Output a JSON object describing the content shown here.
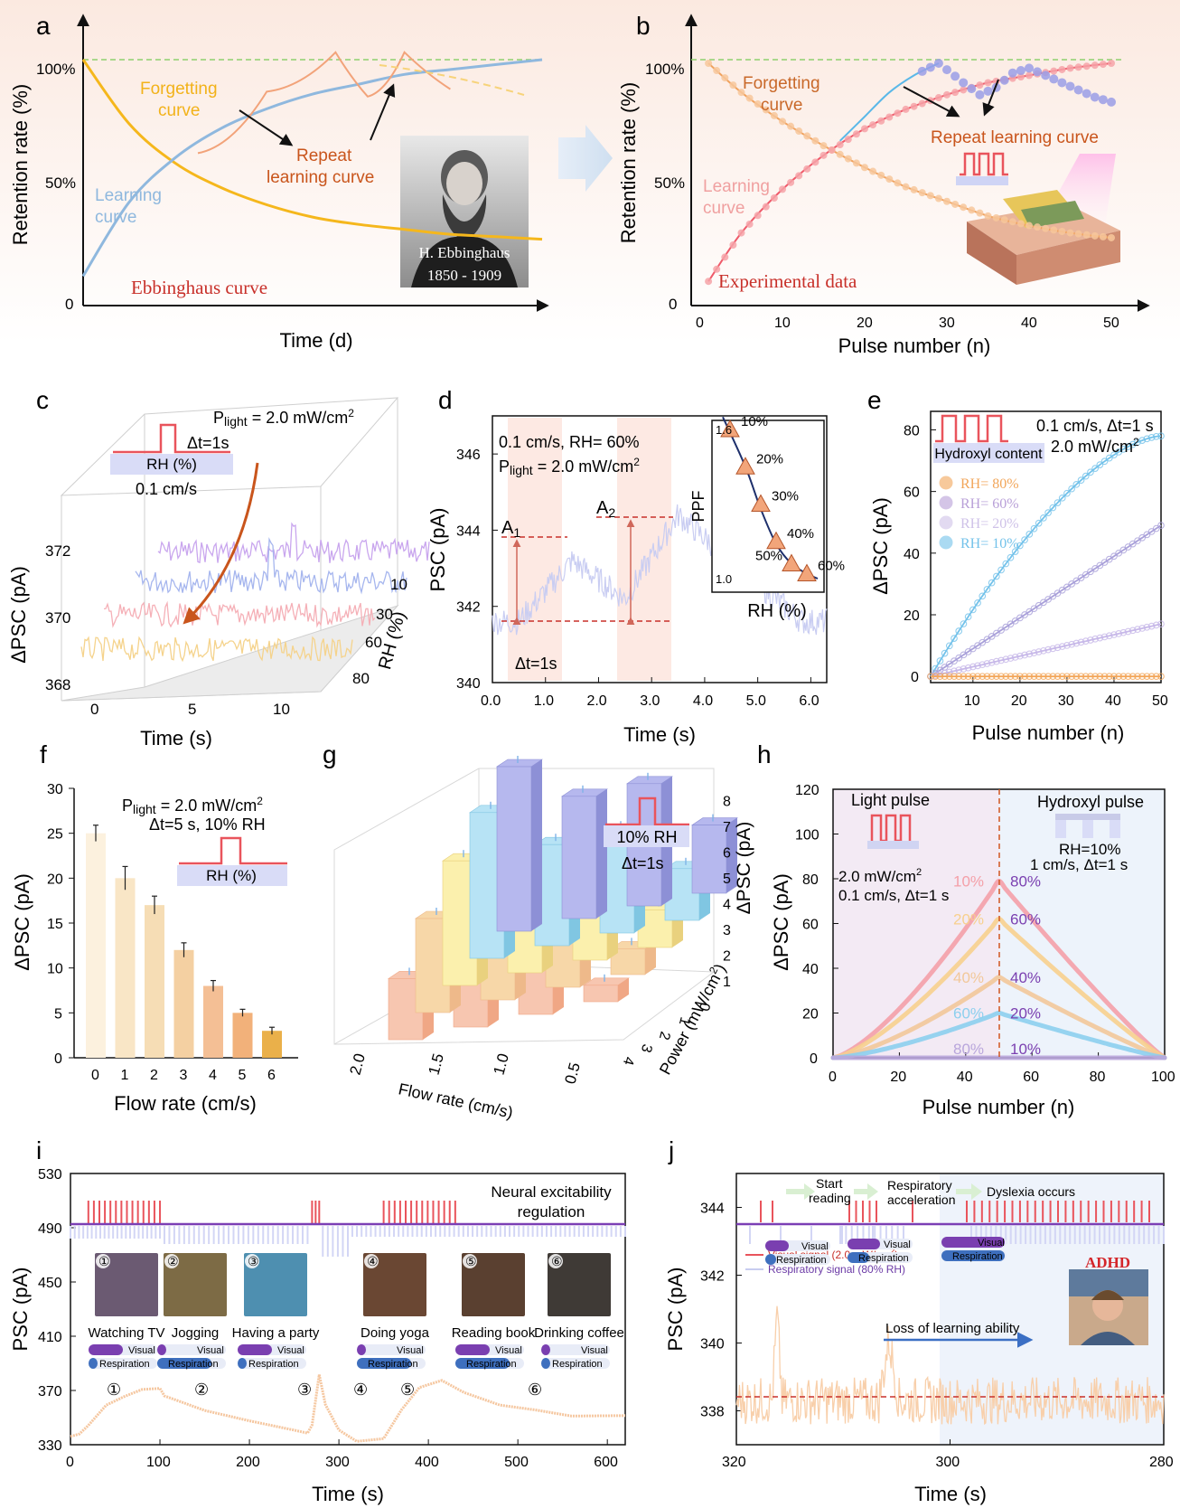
{
  "panels": {
    "a": {
      "letter": "a",
      "ylabel": "Retention rate (%)",
      "xlabel": "Time (d)",
      "yticks": [
        "100%",
        "50%",
        "0"
      ],
      "labels": {
        "forgetting": "Forgetting curve",
        "learning": "Learning curve",
        "repeat": "Repeat learning curve",
        "title": "Ebbinghaus curve"
      },
      "portrait_caption": [
        "H. Ebbinghaus",
        "1850 - 1909"
      ]
    },
    "b": {
      "letter": "b",
      "ylabel": "Retention rate (%)",
      "xlabel": "Pulse number (n)",
      "yticks": [
        "100%",
        "50%",
        "0"
      ],
      "labels": {
        "forgetting": "Forgetting curve",
        "learning": "Learning curve",
        "repeat": "Repeat learning curve",
        "title": "Experimental data"
      }
    },
    "c": {
      "letter": "c",
      "ylabel": "ΔPSC (pA)",
      "xlabel": "Time (s)",
      "rhlabel": "RH (%)",
      "ann_power_label": "P",
      "ann_power_sub": "light",
      "ann_power_val": " = 2.0 mW/cm",
      "ann_dt": "Δt=1s",
      "ann_rh": "RH (%)",
      "ann_flow": "0.1 cm/s"
    },
    "d": {
      "letter": "d",
      "ylabel": "PSC (pA)",
      "xlabel": "Time (s)",
      "ann1": "0.1 cm/s, RH= 60%",
      "ann_power_label": "P",
      "ann_power_sub": "light",
      "ann_power_val": " = 2.0 mW/cm",
      "a1": "A",
      "a1_sub": "1",
      "a2": "A",
      "a2_sub": "2",
      "dt": "Δt=1s",
      "inset_ylabel": "PPF",
      "inset_xlabel": "RH (%)"
    },
    "e": {
      "letter": "e",
      "ylabel": "ΔPSC (pA)",
      "xlabel": "Pulse number (n)",
      "ann1": "0.1 cm/s, Δt=1 s",
      "ann2": "2.0 mW/cm",
      "box": "Hydroxyl content"
    },
    "f": {
      "letter": "f",
      "ylabel": "ΔPSC (pA)",
      "xlabel": "Flow rate (cm/s)",
      "ann_power_label": "P",
      "ann_power_sub": "light",
      "ann_power_val": " = 2.0 mW/cm",
      "ann2": "Δt=5 s, 10% RH",
      "box": "RH (%)"
    },
    "g": {
      "letter": "g",
      "zlabel": "ΔPSC (pA)",
      "xlabel": "Flow rate (cm/s)",
      "ylabel": "Power (mW/cm",
      "box1": "10% RH",
      "box2": "Δt=1s"
    },
    "h": {
      "letter": "h",
      "ylabel": "ΔPSC (pA)",
      "xlabel": "Pulse number (n)",
      "light_title": "Light pulse",
      "hyd_title": "Hydroxyl pulse",
      "ann_left1": "2.0 mW/cm",
      "ann_left2": "0.1 cm/s, Δt=1 s",
      "ann_right1": "RH=10%",
      "ann_right2": "1 cm/s, Δt=1 s"
    },
    "i": {
      "letter": "i",
      "ylabel": "PSC (pA)",
      "xlabel": "Time (s)",
      "title1": "Neural excitability",
      "title2": "regulation",
      "bar_visual": "Visual",
      "bar_resp": "Respiration"
    },
    "j": {
      "letter": "j",
      "ylabel": "PSC (pA)",
      "xlabel": "Time (s)",
      "step1": "Start",
      "step1b": "reading",
      "step2": "Respiratory",
      "step2b": "acceleration",
      "step3": "Dyslexia occurs",
      "leg_visual": "Visual signal (2.0 mW/cm",
      "leg_resp": "Respiratory signal (80% RH)",
      "bar_visual": "Visual",
      "bar_resp": "Respiration",
      "loss": "Loss of learning ability",
      "adhd": "ADHD"
    }
  },
  "chart_data": [
    {
      "panel": "a",
      "type": "line",
      "title": "Ebbinghaus curve",
      "xlabel": "Time (d)",
      "ylabel": "Retention rate (%)",
      "ylim": [
        0,
        100
      ],
      "series": [
        {
          "name": "Forgetting curve",
          "x": [
            0,
            1,
            2,
            3,
            4,
            5,
            6,
            7,
            8,
            9,
            10
          ],
          "values": [
            100,
            74,
            58,
            48,
            41,
            36,
            33,
            31,
            29,
            28,
            27
          ]
        },
        {
          "name": "Learning curve",
          "x": [
            0,
            1,
            2,
            3,
            4,
            5,
            6,
            7,
            8,
            9,
            10
          ],
          "values": [
            12,
            42,
            60,
            72,
            80,
            86,
            90,
            94,
            96,
            98,
            100
          ]
        },
        {
          "name": "Repeat learning curve",
          "x": [
            2.5,
            4,
            5.5,
            6.2,
            7,
            8
          ],
          "values": [
            62,
            87,
            103,
            85,
            103,
            88
          ]
        }
      ]
    },
    {
      "panel": "b",
      "type": "scatter",
      "title": "Experimental data",
      "xlabel": "Pulse number (n)",
      "ylabel": "Retention rate (%)",
      "x_ticks": [
        0,
        10,
        20,
        30,
        40,
        50
      ],
      "xlim": [
        0,
        50
      ],
      "ylim": [
        0,
        100
      ],
      "series": [
        {
          "name": "Forgetting curve",
          "x": [
            1,
            5,
            10,
            15,
            20,
            25,
            30,
            35,
            40,
            45,
            50
          ],
          "values": [
            100,
            88,
            76,
            66,
            57,
            49,
            43,
            37,
            33,
            30,
            28
          ]
        },
        {
          "name": "Learning curve",
          "x": [
            1,
            5,
            10,
            15,
            20,
            25,
            30,
            35,
            40,
            45,
            50
          ],
          "values": [
            10,
            30,
            48,
            62,
            73,
            81,
            87,
            92,
            95,
            98,
            100
          ]
        },
        {
          "name": "Repeat learning curve",
          "x": [
            17,
            20,
            23,
            26,
            29,
            32,
            34,
            36,
            38,
            40,
            44,
            48,
            50
          ],
          "values": [
            68,
            78,
            88,
            95,
            100,
            92,
            87,
            90,
            96,
            98,
            92,
            86,
            84
          ]
        }
      ]
    },
    {
      "panel": "c",
      "type": "line",
      "xlabel": "Time (s)",
      "ylabel": "ΔPSC (pA)",
      "x_ticks": [
        0,
        5,
        10
      ],
      "y_ticks": [
        368,
        370,
        372
      ],
      "rh_ticks": [
        10,
        30,
        60,
        80
      ],
      "series": [
        {
          "name": "10",
          "baseline": 372.0
        },
        {
          "name": "30",
          "baseline": 371.4
        },
        {
          "name": "60",
          "baseline": 370.5
        },
        {
          "name": "80",
          "baseline": 369.6
        }
      ]
    },
    {
      "panel": "d",
      "type": "line",
      "xlabel": "Time (s)",
      "ylabel": "PSC (pA)",
      "x_ticks": [
        0.0,
        1.0,
        2.0,
        3.0,
        4.0,
        5.0,
        6.0
      ],
      "y_ticks": [
        340,
        342,
        344,
        346
      ],
      "xlim": [
        0,
        6.3
      ],
      "ylim": [
        340,
        347
      ],
      "a1_level": 343.8,
      "a2_level": 344.3,
      "base_level": 341.6,
      "inset": {
        "xlabel": "RH (%)",
        "ylabel": "PPF",
        "y_ticks": [
          1.0,
          1.6
        ],
        "points": [
          {
            "label": "10%",
            "ppf": 1.6
          },
          {
            "label": "20%",
            "ppf": 1.45
          },
          {
            "label": "30%",
            "ppf": 1.3
          },
          {
            "label": "40%",
            "ppf": 1.15
          },
          {
            "label": "50%",
            "ppf": 1.06
          },
          {
            "label": "60%",
            "ppf": 1.02
          }
        ]
      }
    },
    {
      "panel": "e",
      "type": "line",
      "xlabel": "Pulse number (n)",
      "ylabel": "ΔPSC (pA)",
      "x_ticks": [
        10,
        20,
        30,
        40,
        50
      ],
      "y_ticks": [
        0,
        20,
        40,
        60,
        80
      ],
      "xlim": [
        1,
        50
      ],
      "ylim": [
        -2,
        86
      ],
      "series": [
        {
          "name": "RH= 80%",
          "color": "#f2a65a",
          "final": 0
        },
        {
          "name": "RH= 60%",
          "color": "#b9a0d8",
          "final": 0
        },
        {
          "name": "RH= 20%",
          "color": "#cfc2e8",
          "final": 17
        },
        {
          "name": "RH= 10%",
          "color": "#73c2ea",
          "final": 78
        }
      ],
      "extra_series_final": 49
    },
    {
      "panel": "f",
      "type": "bar",
      "xlabel": "Flow rate (cm/s)",
      "ylabel": "ΔPSC (pA)",
      "categories": [
        "0",
        "1",
        "2",
        "3",
        "4",
        "5",
        "6"
      ],
      "values": [
        25,
        20,
        17,
        12,
        8,
        5,
        3
      ],
      "errors": [
        0.9,
        1.3,
        1.0,
        0.8,
        0.6,
        0.4,
        0.4
      ],
      "y_ticks": [
        0,
        5,
        10,
        15,
        20,
        25,
        30
      ],
      "ylim": [
        0,
        30
      ]
    },
    {
      "panel": "g",
      "type": "bar",
      "xlabel": "Flow rate (cm/s)",
      "ylabel": "Power (mW/cm²)",
      "zlabel": "ΔPSC (pA)",
      "flow_ticks": [
        "2.0",
        "1.5",
        "1.0",
        "0.5"
      ],
      "power_ticks": [
        "0",
        "1",
        "2",
        "3",
        "4"
      ],
      "z_ticks": [
        1,
        2,
        3,
        4,
        5,
        6,
        7,
        8
      ],
      "rows": [
        {
          "power": 4,
          "values": [
            2.6,
            2.2,
            2.2,
            0.7
          ]
        },
        {
          "power": 3,
          "values": [
            4.0,
            3.0,
            3.0,
            1.1
          ]
        },
        {
          "power": 2,
          "values": [
            5.3,
            3.6,
            3.6,
            1.6
          ]
        },
        {
          "power": 1,
          "values": [
            6.2,
            4.3,
            4.3,
            2.2
          ]
        },
        {
          "power": 0,
          "values": [
            7.0,
            5.2,
            5.2,
            2.9
          ]
        }
      ]
    },
    {
      "panel": "h",
      "type": "line",
      "xlabel": "Pulse number (n)",
      "ylabel": "ΔPSC (pA)",
      "x_ticks": [
        0,
        20,
        40,
        60,
        80,
        100
      ],
      "y_ticks": [
        0,
        20,
        40,
        60,
        80,
        100,
        120
      ],
      "xlim": [
        0,
        100
      ],
      "ylim": [
        0,
        120
      ],
      "series": [
        {
          "left": "10%",
          "right": "80%",
          "color": "#f4a0a8",
          "peak": 79
        },
        {
          "left": "20%",
          "right": "60%",
          "color": "#f7d08e",
          "peak": 62
        },
        {
          "left": "40%",
          "right": "40%",
          "color": "#f2c89a",
          "peak": 36
        },
        {
          "left": "60%",
          "right": "20%",
          "color": "#8ccfee",
          "peak": 20
        },
        {
          "left": "80%",
          "right": "10%",
          "color": "#b9a6dc",
          "peak": 0
        }
      ]
    },
    {
      "panel": "i",
      "type": "line",
      "xlabel": "Time (s)",
      "ylabel": "PSC (pA)",
      "x_ticks": [
        0,
        100,
        200,
        300,
        400,
        500,
        600
      ],
      "y_ticks": [
        330,
        370,
        410,
        450,
        490,
        530
      ],
      "xlim": [
        0,
        620
      ],
      "ylim": [
        330,
        530
      ],
      "activities": [
        "Watching TV",
        "Jogging",
        "Having a party",
        "Doing yoga",
        "Reading book",
        "Drinking coffee"
      ],
      "markers": [
        "①",
        "②",
        "③",
        "④",
        "⑤",
        "⑥"
      ],
      "points": [
        [
          0,
          336
        ],
        [
          10,
          337
        ],
        [
          20,
          345
        ],
        [
          40,
          360
        ],
        [
          60,
          366
        ],
        [
          80,
          370
        ],
        [
          100,
          371
        ],
        [
          105,
          366
        ],
        [
          120,
          362
        ],
        [
          150,
          356
        ],
        [
          200,
          348
        ],
        [
          250,
          341
        ],
        [
          265,
          338
        ],
        [
          270,
          345
        ],
        [
          278,
          382
        ],
        [
          285,
          360
        ],
        [
          300,
          340
        ],
        [
          320,
          333
        ],
        [
          350,
          335
        ],
        [
          370,
          355
        ],
        [
          390,
          372
        ],
        [
          415,
          378
        ],
        [
          440,
          368
        ],
        [
          480,
          360
        ],
        [
          520,
          355
        ],
        [
          560,
          352
        ],
        [
          620,
          352
        ]
      ]
    },
    {
      "panel": "j",
      "type": "line",
      "xlabel": "Time (s)",
      "ylabel": "PSC (pA)",
      "x_ticks": [
        320,
        300,
        280
      ],
      "y_ticks": [
        338,
        340,
        342,
        344
      ],
      "ylim": [
        337,
        345
      ],
      "baseline": 338.3,
      "legend": [
        "Visual signal (2.0 mW/cm²)",
        "Respiratory signal (80% RH)"
      ]
    }
  ]
}
